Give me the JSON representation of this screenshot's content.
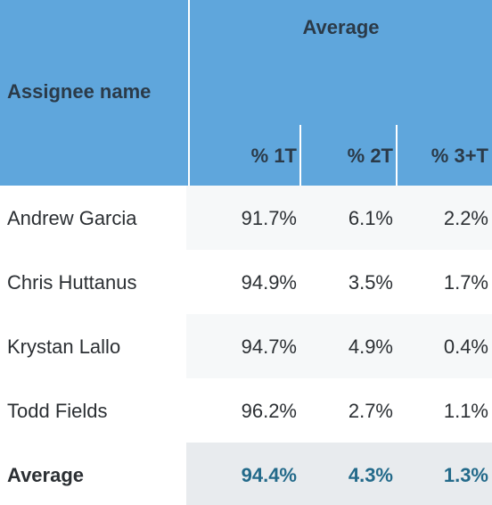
{
  "header": {
    "group": "Average",
    "name": "Assignee name",
    "columns": [
      "% 1T",
      "% 2T",
      "% 3+T"
    ]
  },
  "table": {
    "rows": [
      [
        "Andrew Garcia",
        "91.7%",
        "6.1%",
        "2.2%"
      ],
      [
        "Chris Huttanus",
        "94.9%",
        "3.5%",
        "1.7%"
      ],
      [
        "Krystan Lallo",
        "94.7%",
        "4.9%",
        "0.4%"
      ],
      [
        "Todd Fields",
        "96.2%",
        "2.7%",
        "1.1%"
      ]
    ],
    "footer": [
      "Average",
      "94.4%",
      "4.3%",
      "1.3%"
    ]
  }
}
